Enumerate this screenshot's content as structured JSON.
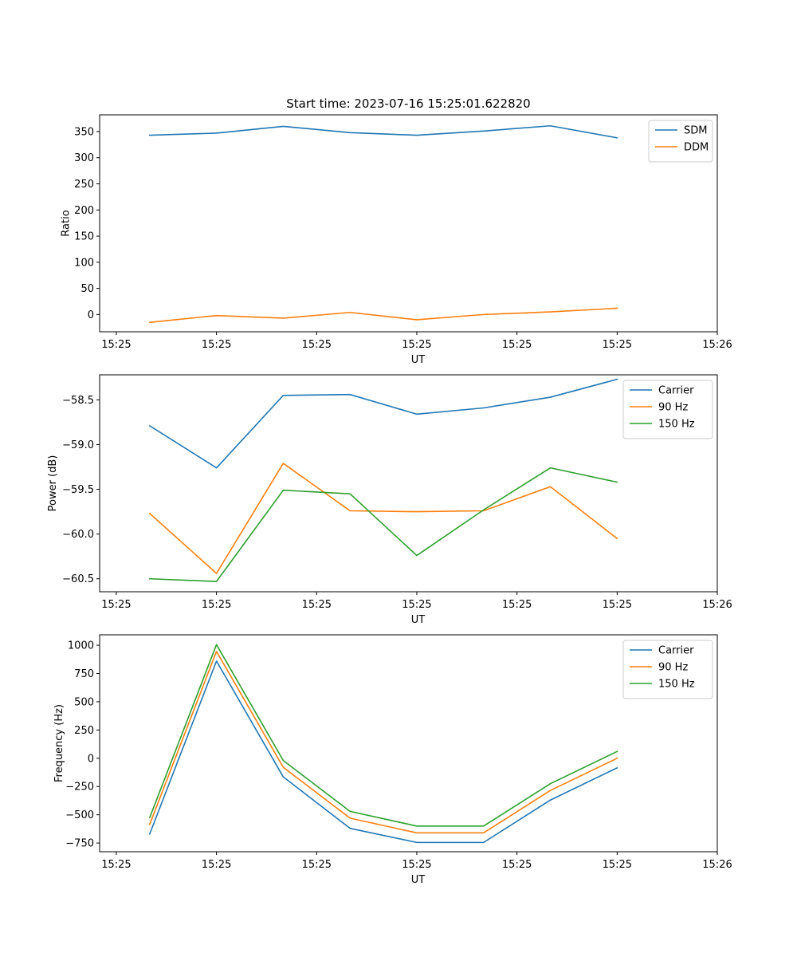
{
  "chart_data": [
    {
      "type": "line",
      "title": "Start time: 2023-07-16 15:25:01.622820",
      "xlabel": "UT",
      "ylabel": "Ratio",
      "x": [
        0,
        1,
        2,
        3,
        4,
        5,
        6,
        7
      ],
      "xlim": [
        -0.75,
        8.5
      ],
      "xticks": [
        -0.5,
        1,
        2.5,
        4,
        5.5,
        7,
        8.5
      ],
      "xtick_labels": [
        "15:25",
        "15:25",
        "15:25",
        "15:25",
        "15:25",
        "15:25",
        "15:26"
      ],
      "ylim": [
        -33,
        382
      ],
      "yticks": [
        0,
        50,
        100,
        150,
        200,
        250,
        300,
        350
      ],
      "ytick_labels": [
        "0",
        "50",
        "100",
        "150",
        "200",
        "250",
        "300",
        "350"
      ],
      "legend_position": "top-right",
      "series": [
        {
          "name": "SDM",
          "color": "#1f77b4",
          "values": [
            343,
            347,
            360,
            348,
            343,
            351,
            361,
            338
          ]
        },
        {
          "name": "DDM",
          "color": "#ff7f0e",
          "values": [
            -15,
            -2,
            -7,
            4,
            -10,
            0,
            5,
            12
          ]
        }
      ]
    },
    {
      "type": "line",
      "title": "",
      "xlabel": "UT",
      "ylabel": "Power (dB)",
      "x": [
        0,
        1,
        2,
        3,
        4,
        5,
        6,
        7
      ],
      "xlim": [
        -0.75,
        8.5
      ],
      "xticks": [
        -0.5,
        1,
        2.5,
        4,
        5.5,
        7,
        8.5
      ],
      "xtick_labels": [
        "15:25",
        "15:25",
        "15:25",
        "15:25",
        "15:25",
        "15:25",
        "15:26"
      ],
      "ylim": [
        -60.645,
        -58.22
      ],
      "yticks": [
        -60.5,
        -60.0,
        -59.5,
        -59.0,
        -58.5
      ],
      "ytick_labels": [
        "−60.5",
        "−60.0",
        "−59.5",
        "−59.0",
        "−58.5"
      ],
      "legend_position": "top-right",
      "series": [
        {
          "name": "Carrier",
          "color": "#1f77b4",
          "values": [
            -58.79,
            -59.26,
            -58.45,
            -58.44,
            -58.66,
            -58.59,
            -58.47,
            -58.27
          ]
        },
        {
          "name": "90 Hz",
          "color": "#ff7f0e",
          "values": [
            -59.77,
            -60.44,
            -59.21,
            -59.74,
            -59.75,
            -59.74,
            -59.47,
            -60.05
          ]
        },
        {
          "name": "150 Hz",
          "color": "#2ca02c",
          "values": [
            -60.5,
            -60.53,
            -59.51,
            -59.55,
            -60.24,
            -59.73,
            -59.26,
            -59.42
          ]
        }
      ]
    },
    {
      "type": "line",
      "title": "",
      "xlabel": "UT",
      "ylabel": "Frequency (Hz)",
      "x": [
        0,
        1,
        2,
        3,
        4,
        5,
        6,
        7
      ],
      "xlim": [
        -0.75,
        8.5
      ],
      "xticks": [
        -0.5,
        1,
        2.5,
        4,
        5.5,
        7,
        8.5
      ],
      "xtick_labels": [
        "15:25",
        "15:25",
        "15:25",
        "15:25",
        "15:25",
        "15:25",
        "15:26"
      ],
      "ylim": [
        -827,
        1092
      ],
      "yticks": [
        -750,
        -500,
        -250,
        0,
        250,
        500,
        750,
        1000
      ],
      "ytick_labels": [
        "−750",
        "−500",
        "−250",
        "0",
        "250",
        "500",
        "750",
        "1000"
      ],
      "legend_position": "top-right",
      "series": [
        {
          "name": "Carrier",
          "color": "#1f77b4",
          "values": [
            -670,
            860,
            -165,
            -620,
            -745,
            -745,
            -370,
            -85
          ]
        },
        {
          "name": "90 Hz",
          "color": "#ff7f0e",
          "values": [
            -585,
            945,
            -80,
            -530,
            -660,
            -660,
            -285,
            0
          ]
        },
        {
          "name": "150 Hz",
          "color": "#2ca02c",
          "values": [
            -525,
            1005,
            -20,
            -470,
            -600,
            -600,
            -225,
            60
          ]
        }
      ]
    }
  ]
}
